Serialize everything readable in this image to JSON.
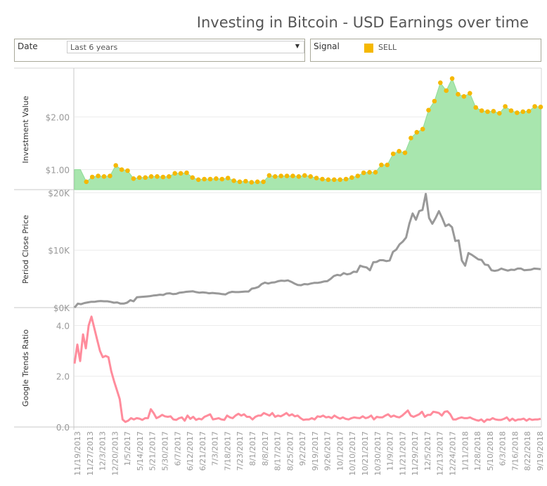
{
  "title": "Investing in Bitcoin - USD Earnings over time",
  "filters": {
    "date_label": "Date",
    "date_value": "Last 6 years",
    "signal_label": "Signal",
    "signal_legend": [
      {
        "label": "SELL",
        "color": "#f5b800"
      }
    ]
  },
  "colors": {
    "area_fill": "#a8e6ae",
    "area_stroke": "#8fdc98",
    "dot": "#f5b800",
    "price_line": "#999999",
    "trends_line": "#ff8c9c",
    "grid": "#ececec",
    "axis": "#c8c8c8",
    "tick_text": "#999999"
  },
  "chart_data": [
    {
      "type": "area",
      "title": "Investment Value",
      "ylabel": "Investment Value",
      "ylim": [
        0.62,
        2.9
      ],
      "yticks": [
        {
          "v": 1.0,
          "label": "$1.00"
        },
        {
          "v": 2.0,
          "label": "$2.00"
        }
      ],
      "area_values": [
        1.0,
        1.0,
        0.77,
        0.86,
        0.88,
        0.87,
        0.88,
        1.08,
        1.0,
        0.98,
        0.83,
        0.85,
        0.85,
        0.87,
        0.87,
        0.86,
        0.87,
        0.93,
        0.93,
        0.94,
        0.85,
        0.81,
        0.82,
        0.82,
        0.83,
        0.82,
        0.84,
        0.79,
        0.77,
        0.78,
        0.76,
        0.77,
        0.77,
        0.89,
        0.87,
        0.88,
        0.88,
        0.88,
        0.87,
        0.89,
        0.87,
        0.84,
        0.82,
        0.81,
        0.81,
        0.81,
        0.82,
        0.85,
        0.88,
        0.94,
        0.95,
        0.95,
        1.09,
        1.09,
        1.3,
        1.35,
        1.32,
        1.6,
        1.71,
        1.77,
        2.13,
        2.3,
        2.65,
        2.5,
        2.73,
        2.43,
        2.39,
        2.45,
        2.18,
        2.12,
        2.1,
        2.11,
        2.07,
        2.2,
        2.12,
        2.08,
        2.1,
        2.11,
        2.2,
        2.19
      ],
      "signal_dots": "all points except the first two are SELL signals"
    },
    {
      "type": "line",
      "title": "Period Close Price",
      "ylabel": "Period Close Price",
      "ylim": [
        0,
        20300
      ],
      "yticks": [
        {
          "v": 0,
          "label": "$0K"
        },
        {
          "v": 10000,
          "label": "$10K"
        },
        {
          "v": 20000,
          "label": "$20K"
        }
      ],
      "values": [
        0,
        700,
        600,
        800,
        900,
        1000,
        1000,
        1100,
        1150,
        1100,
        1100,
        1000,
        850,
        900,
        700,
        700,
        850,
        1300,
        1100,
        1800,
        1850,
        1900,
        1950,
        2000,
        2100,
        2150,
        2250,
        2200,
        2450,
        2500,
        2350,
        2400,
        2600,
        2650,
        2750,
        2800,
        2850,
        2700,
        2600,
        2650,
        2600,
        2500,
        2550,
        2500,
        2450,
        2350,
        2300,
        2600,
        2750,
        2700,
        2700,
        2750,
        2800,
        2800,
        3300,
        3400,
        3600,
        4100,
        4350,
        4200,
        4350,
        4400,
        4600,
        4700,
        4650,
        4750,
        4500,
        4200,
        3950,
        3900,
        4100,
        4050,
        4200,
        4300,
        4300,
        4400,
        4550,
        4600,
        5000,
        5500,
        5700,
        5600,
        6000,
        5800,
        5900,
        6250,
        6200,
        7300,
        7100,
        7000,
        6500,
        7900,
        7950,
        8250,
        8250,
        8100,
        8200,
        9700,
        10100,
        11000,
        11500,
        12200,
        14600,
        16400,
        15300,
        16800,
        17000,
        19800,
        15600,
        14600,
        15600,
        16800,
        15600,
        14200,
        14500,
        14000,
        11600,
        11700,
        8200,
        7300,
        9500,
        9200,
        8800,
        8400,
        8300,
        7500,
        7400,
        6500,
        6400,
        6500,
        6800,
        6600,
        6450,
        6600,
        6550,
        6800,
        6800,
        6500,
        6550,
        6600,
        6800,
        6750,
        6700
      ],
      "x_tick_labels": [
        "11/19/2013",
        "11/27/2013",
        "12/3/2013",
        "12/20/2013",
        "1/5/2017",
        "5/14/2017",
        "5/21/2017",
        "5/30/2017",
        "6/7/2017",
        "6/12/2017",
        "6/21/2017",
        "7/3/2017",
        "7/18/2017",
        "7/23/2017",
        "8/1/2017",
        "8/8/2017",
        "8/17/2017",
        "8/25/2017",
        "9/2/2017",
        "9/19/2017",
        "9/26/2017",
        "10/1/2017",
        "10/10/2017",
        "10/21/2017",
        "10/30/2017",
        "11/9/2017",
        "11/21/2017",
        "11/29/2017",
        "12/5/2017",
        "12/13/2017",
        "12/24/2017",
        "1/11/2018",
        "1/28/2018",
        "5/10/2018",
        "6/3/2018",
        "7/16/2018",
        "8/22/2018",
        "9/19/2018"
      ]
    },
    {
      "type": "line",
      "title": "Google Trends Ratio",
      "ylabel": "Google Trends Ratio",
      "ylim": [
        0,
        4.65
      ],
      "yticks": [
        {
          "v": 0.0,
          "label": "0.0"
        },
        {
          "v": 2.0,
          "label": "2.0"
        },
        {
          "v": 4.0,
          "label": "4.0"
        }
      ],
      "values": [
        2.5,
        3.25,
        2.6,
        3.65,
        3.1,
        4.0,
        4.35,
        3.9,
        3.45,
        3.0,
        2.75,
        2.8,
        2.75,
        2.2,
        1.8,
        1.45,
        1.1,
        0.3,
        0.2,
        0.25,
        0.35,
        0.3,
        0.35,
        0.33,
        0.28,
        0.35,
        0.35,
        0.7,
        0.55,
        0.35,
        0.4,
        0.48,
        0.42,
        0.4,
        0.42,
        0.3,
        0.28,
        0.35,
        0.38,
        0.25,
        0.45,
        0.32,
        0.4,
        0.28,
        0.33,
        0.3,
        0.4,
        0.45,
        0.5,
        0.3,
        0.32,
        0.35,
        0.3,
        0.28,
        0.45,
        0.38,
        0.35,
        0.45,
        0.52,
        0.45,
        0.5,
        0.4,
        0.4,
        0.3,
        0.4,
        0.45,
        0.45,
        0.55,
        0.5,
        0.45,
        0.55,
        0.4,
        0.45,
        0.42,
        0.48,
        0.55,
        0.45,
        0.5,
        0.42,
        0.45,
        0.35,
        0.28,
        0.3,
        0.3,
        0.35,
        0.3,
        0.42,
        0.4,
        0.45,
        0.38,
        0.4,
        0.35,
        0.45,
        0.38,
        0.33,
        0.38,
        0.32,
        0.3,
        0.35,
        0.38,
        0.36,
        0.35,
        0.42,
        0.35,
        0.38,
        0.45,
        0.3,
        0.4,
        0.38,
        0.38,
        0.45,
        0.5,
        0.4,
        0.45,
        0.4,
        0.38,
        0.45,
        0.55,
        0.65,
        0.45,
        0.4,
        0.45,
        0.5,
        0.6,
        0.4,
        0.48,
        0.48,
        0.6,
        0.58,
        0.55,
        0.45,
        0.6,
        0.62,
        0.5,
        0.3,
        0.3,
        0.35,
        0.38,
        0.35,
        0.35,
        0.38,
        0.32,
        0.28,
        0.25,
        0.3,
        0.2,
        0.3,
        0.28,
        0.35,
        0.3,
        0.28,
        0.28,
        0.32,
        0.38,
        0.25,
        0.33,
        0.25,
        0.3,
        0.3,
        0.33,
        0.25,
        0.32,
        0.28,
        0.3,
        0.3,
        0.32
      ]
    }
  ]
}
